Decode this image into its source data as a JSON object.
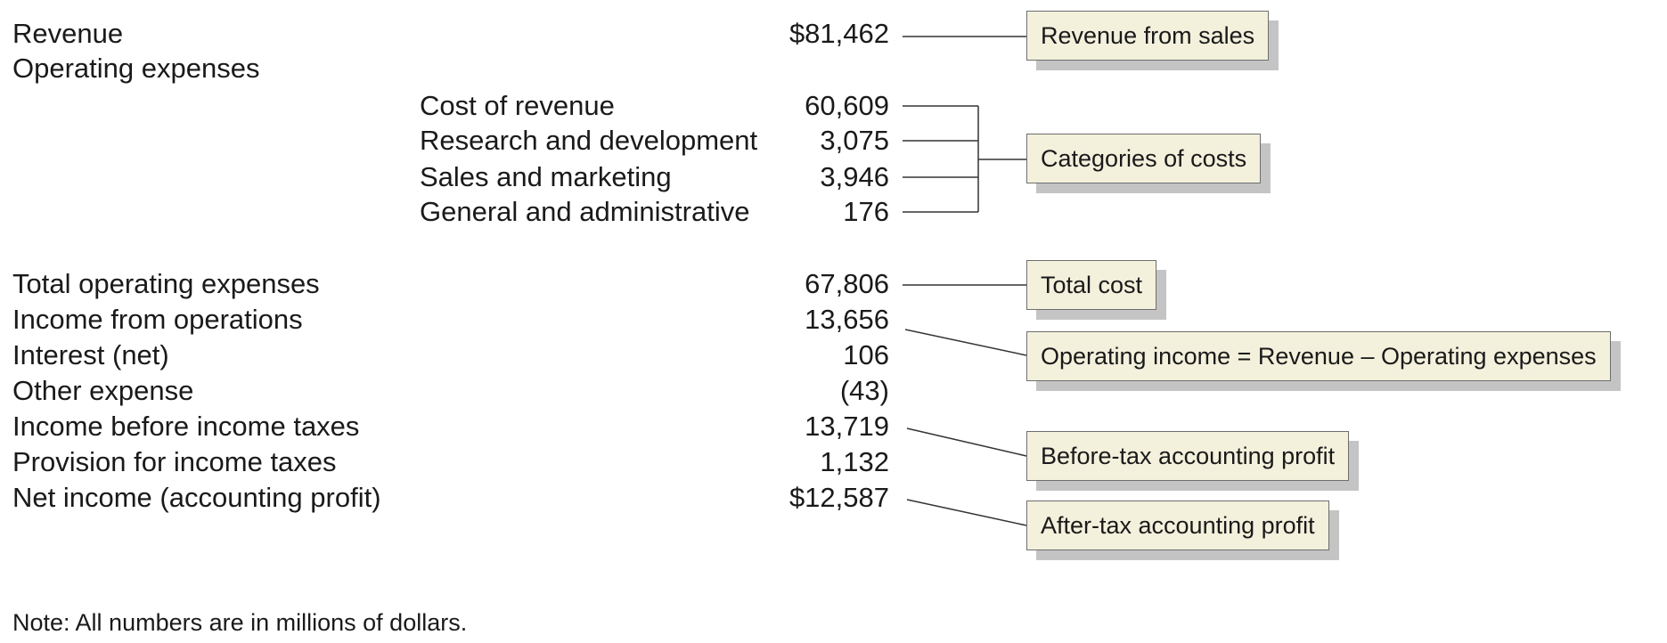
{
  "statement": {
    "revenue_label": "Revenue",
    "revenue_value": "$81,462",
    "operating_expenses_label": "Operating expenses",
    "cost_items": [
      {
        "label": "Cost of revenue",
        "value": "60,609"
      },
      {
        "label": "Research and development",
        "value": "3,075"
      },
      {
        "label": "Sales and marketing",
        "value": "3,946"
      },
      {
        "label": "General and administrative",
        "value": "176"
      }
    ],
    "totals": [
      {
        "label": "Total operating expenses",
        "value": "67,806"
      },
      {
        "label": "Income from operations",
        "value": "13,656"
      },
      {
        "label": "Interest (net)",
        "value": "106"
      },
      {
        "label": "Other expense",
        "value": "(43)"
      },
      {
        "label": "Income before income taxes",
        "value": "13,719"
      },
      {
        "label": "Provision for income taxes",
        "value": "1,132"
      },
      {
        "label": "Net income (accounting profit)",
        "value": "$12,587"
      }
    ]
  },
  "callouts": {
    "revenue": "Revenue from sales",
    "categories": "Categories of costs",
    "total_cost": "Total cost",
    "operating_income": "Operating income = Revenue – Operating expenses",
    "before_tax": "Before-tax accounting profit",
    "after_tax": "After-tax accounting profit"
  },
  "note": "Note: All numbers are in millions of dollars.",
  "colors": {
    "callout_fill": "#f3f0dc",
    "callout_border": "#6e6e6e",
    "callout_shadow": "#c4c4c4",
    "leader_line": "#333333"
  }
}
